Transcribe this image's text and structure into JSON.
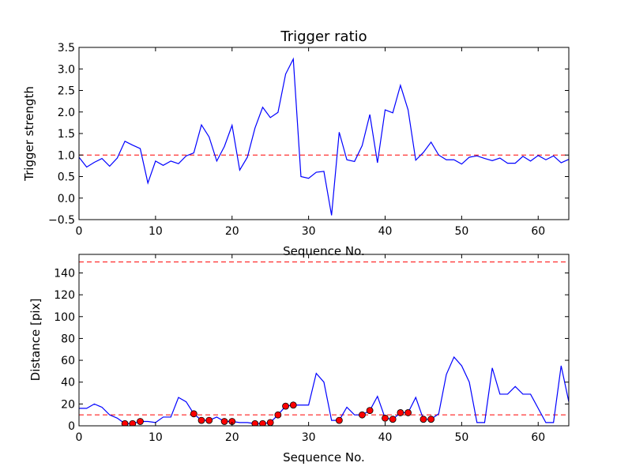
{
  "chart_data": [
    {
      "type": "line",
      "title": "Trigger ratio",
      "xlabel": "Sequence No.",
      "ylabel": "Trigger strength",
      "xlim": [
        0,
        64
      ],
      "ylim": [
        -0.5,
        3.5
      ],
      "xticks": [
        0,
        10,
        20,
        30,
        40,
        50,
        60
      ],
      "xtick_labels": [
        "0",
        "10",
        "20",
        "30",
        "40",
        "50",
        "60"
      ],
      "yticks": [
        -0.5,
        0,
        0.5,
        1,
        1.5,
        2,
        2.5,
        3,
        3.5
      ],
      "ytick_labels": [
        "−0.5",
        "0.0",
        "0.5",
        "1.0",
        "1.5",
        "2.0",
        "2.5",
        "3.0",
        "3.5"
      ],
      "grid": false,
      "line_color": "#0000ff",
      "threshold_color": "#ff0000",
      "thresholds": [
        1.0
      ],
      "series": [
        {
          "x": [
            0,
            1,
            2,
            3,
            4,
            5,
            6,
            7,
            8,
            9,
            10,
            11,
            12,
            13,
            14,
            15,
            16,
            17,
            18,
            19,
            20,
            21,
            22,
            23,
            24,
            25,
            26,
            27,
            28,
            29,
            30,
            31,
            32,
            33,
            34,
            35,
            36,
            37,
            38,
            39,
            40,
            41,
            42,
            43,
            44,
            45,
            46,
            47,
            48,
            49,
            50,
            51,
            52,
            53,
            54,
            55,
            56,
            57,
            58,
            59,
            60,
            61,
            62,
            63,
            64
          ],
          "values": [
            0.95,
            0.72,
            0.83,
            0.92,
            0.74,
            0.93,
            1.32,
            1.23,
            1.15,
            0.35,
            0.86,
            0.76,
            0.86,
            0.8,
            0.98,
            1.05,
            1.7,
            1.42,
            0.86,
            1.2,
            1.69,
            0.65,
            0.95,
            1.63,
            2.11,
            1.87,
            1.99,
            2.88,
            3.23,
            0.5,
            0.46,
            0.6,
            0.62,
            -0.4,
            1.53,
            0.89,
            0.85,
            1.22,
            1.94,
            0.82,
            2.05,
            1.98,
            2.62,
            2.05,
            0.88,
            1.06,
            1.3,
            1.0,
            0.89,
            0.89,
            0.79,
            0.95,
            0.98,
            0.92,
            0.87,
            0.93,
            0.81,
            0.81,
            0.97,
            0.86,
            0.99,
            0.89,
            0.98,
            0.82,
            0.9
          ]
        }
      ]
    },
    {
      "type": "line",
      "xlabel": "Sequence No.",
      "ylabel": "Distance [pix]",
      "xlim": [
        0,
        64
      ],
      "ylim": [
        0,
        157
      ],
      "xticks": [
        0,
        10,
        20,
        30,
        40,
        50,
        60
      ],
      "xtick_labels": [
        "0",
        "10",
        "20",
        "30",
        "40",
        "50",
        "60"
      ],
      "yticks": [
        0,
        20,
        40,
        60,
        80,
        100,
        120,
        140
      ],
      "ytick_labels": [
        "0",
        "20",
        "40",
        "60",
        "80",
        "100",
        "120",
        "140"
      ],
      "grid": false,
      "line_color": "#0000ff",
      "marker_color": "#ff0000",
      "threshold_color": "#ff0000",
      "thresholds": [
        10,
        150
      ],
      "series": [
        {
          "x": [
            0,
            1,
            2,
            3,
            4,
            5,
            6,
            7,
            8,
            9,
            10,
            11,
            12,
            13,
            14,
            15,
            16,
            17,
            18,
            19,
            20,
            21,
            22,
            23,
            24,
            25,
            26,
            27,
            28,
            29,
            30,
            31,
            32,
            33,
            34,
            35,
            36,
            37,
            38,
            39,
            40,
            41,
            42,
            43,
            44,
            45,
            46,
            47,
            48,
            49,
            50,
            51,
            52,
            53,
            54,
            55,
            56,
            57,
            58,
            59,
            60,
            61,
            62,
            63,
            64
          ],
          "values": [
            16,
            16,
            20,
            17,
            10,
            7,
            2,
            2,
            4,
            4,
            3,
            8,
            8,
            26,
            22,
            11,
            5,
            5,
            8,
            4,
            4,
            3,
            3,
            2,
            2,
            3,
            10,
            18,
            19,
            19,
            19,
            48,
            40,
            5,
            5,
            17,
            10,
            10,
            14,
            27,
            7,
            6,
            12,
            12,
            26,
            6,
            6,
            11,
            47,
            63,
            55,
            40,
            3,
            3,
            53,
            29,
            29,
            36,
            29,
            29,
            16,
            3,
            3,
            55,
            22
          ]
        }
      ],
      "markers": {
        "x": [
          6,
          7,
          8,
          15,
          16,
          17,
          19,
          20,
          23,
          24,
          25,
          26,
          27,
          28,
          34,
          37,
          38,
          40,
          41,
          42,
          43,
          45,
          46
        ],
        "values": [
          2,
          2,
          4,
          11,
          5,
          5,
          4,
          4,
          2,
          2,
          3,
          10,
          18,
          19,
          5,
          10,
          14,
          7,
          6,
          12,
          12,
          6,
          6
        ]
      }
    }
  ]
}
